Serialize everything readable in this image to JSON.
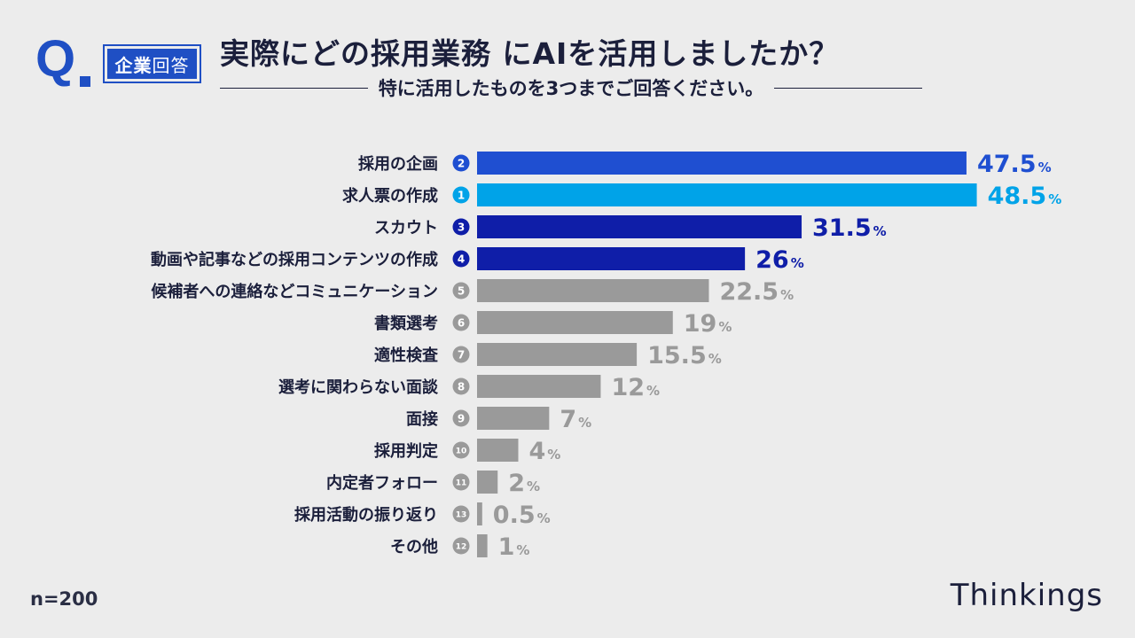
{
  "header": {
    "q_mark": "Q",
    "badge_main": "企業",
    "badge_sub": "回答",
    "title": "実際にどの採用業務 にAIを活用しましたか？",
    "subtitle": "特に活用したものを3つまでご回答ください。"
  },
  "footer": {
    "sample_size": "n=200",
    "brand": "Thinkings"
  },
  "colors": {
    "rank1": "#00a3e8",
    "rank2": "#1f4fd1",
    "rank3": "#0f1ea8",
    "rank4": "#0f1ea8",
    "other": "#9a9a9a",
    "label_text": "#1b1f3b"
  },
  "chart_data": {
    "type": "bar",
    "orientation": "horizontal",
    "unit": "%",
    "xlim": [
      0,
      50
    ],
    "grid": false,
    "legend": "none",
    "categories": [
      "採用の企画",
      "求人票の作成",
      "スカウト",
      "動画や記事などの採用コンテンツの作成",
      "候補者への連絡などコミュニケーション",
      "書類選考",
      "適性検査",
      "選考に関わらない面談",
      "面接",
      "採用判定",
      "内定者フォロー",
      "採用活動の振り返り",
      "その他"
    ],
    "ranks": [
      2,
      1,
      3,
      4,
      5,
      6,
      7,
      8,
      9,
      10,
      11,
      13,
      12
    ],
    "values": [
      47.5,
      48.5,
      31.5,
      26,
      22.5,
      19,
      15.5,
      12,
      7,
      4,
      2,
      0.5,
      1
    ]
  }
}
